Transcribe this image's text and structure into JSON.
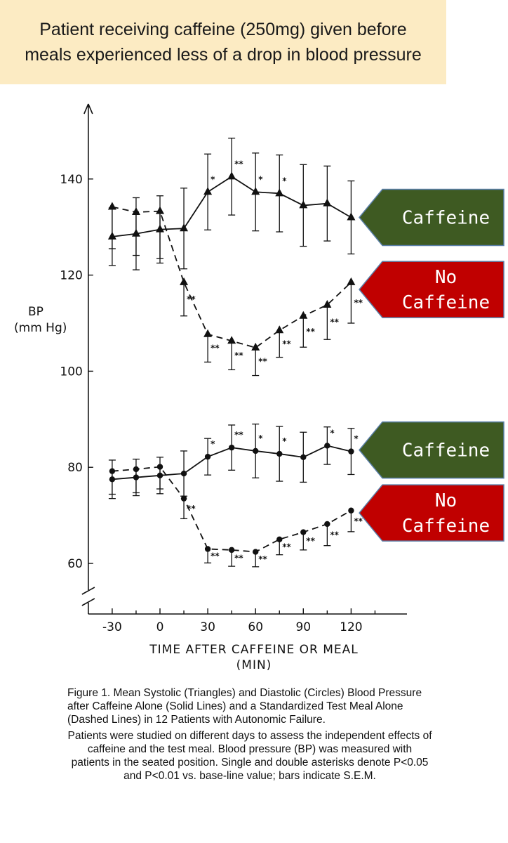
{
  "banner": {
    "line1": "Patient receiving caffeine (250mg) given before",
    "line2": "meals experienced less of a drop in blood pressure"
  },
  "chart_data": {
    "type": "line",
    "ylabel_line1": "BP",
    "ylabel_line2": "(mm Hg)",
    "xlabel_line1": "TIME AFTER CAFFEINE OR MEAL",
    "xlabel_line2": "(MIN)",
    "x_ticks": [
      -30,
      0,
      30,
      60,
      90,
      120
    ],
    "y_ticks": [
      60,
      80,
      100,
      120,
      140
    ],
    "xlim": [
      -45,
      150
    ],
    "y_axis_break": true,
    "grid": false,
    "series": [
      {
        "marker": "triangle",
        "line": "solid",
        "x": [
          -30,
          -15,
          0,
          15,
          30,
          45,
          60,
          75,
          90,
          105,
          120
        ],
        "y": [
          128,
          128.6,
          129.5,
          129.7,
          137.3,
          140.5,
          137.3,
          137,
          134.5,
          134.9,
          132
        ],
        "err": [
          6,
          7.5,
          7,
          8.4,
          7.9,
          8,
          8.1,
          8,
          8.5,
          7.8,
          7.6
        ],
        "err_dir": "both",
        "sig": [
          "",
          "",
          "",
          "",
          "*",
          "**",
          "*",
          "*",
          "",
          "",
          ""
        ]
      },
      {
        "marker": "triangle",
        "line": "dashed",
        "x": [
          -30,
          -15,
          0,
          15,
          30,
          45,
          60,
          75,
          90,
          105,
          120
        ],
        "y": [
          134.2,
          133.1,
          133.3,
          118.5,
          107.7,
          106.3,
          104.9,
          108.5,
          111.5,
          113.8,
          118.5
        ],
        "err": [
          8.7,
          9,
          9.8,
          7,
          5.8,
          6,
          5.8,
          5.6,
          6.5,
          7.2,
          8.5
        ],
        "err_dir": "down",
        "sig": [
          "",
          "",
          "",
          "**",
          "**",
          "**",
          "**",
          "**",
          "**",
          "**",
          "**"
        ]
      },
      {
        "marker": "circle",
        "line": "solid",
        "x": [
          -30,
          -15,
          0,
          15,
          30,
          45,
          60,
          75,
          90,
          105,
          120
        ],
        "y": [
          77.5,
          77.9,
          78.3,
          78.7,
          82.2,
          84.1,
          83.4,
          82.8,
          82.1,
          84.5,
          83.3
        ],
        "err": [
          4,
          3.8,
          3.8,
          4.7,
          3.8,
          4.7,
          5.6,
          5.7,
          5.2,
          3.9,
          4.8
        ],
        "err_dir": "both",
        "sig": [
          "",
          "",
          "",
          "",
          "*",
          "**",
          "*",
          "*",
          "",
          "*",
          "*"
        ]
      },
      {
        "marker": "circle",
        "line": "dashed",
        "x": [
          -30,
          -15,
          0,
          15,
          30,
          45,
          60,
          75,
          90,
          105,
          120
        ],
        "y": [
          79.2,
          79.6,
          80.1,
          73.5,
          63,
          62.8,
          62.4,
          65,
          66.5,
          68.2,
          71
        ],
        "err": [
          4.8,
          4.9,
          4.6,
          4.2,
          2.9,
          3.4,
          3.1,
          3.2,
          3.7,
          4.5,
          4.4
        ],
        "err_dir": "down",
        "sig": [
          "",
          "",
          "",
          "**",
          "**",
          "**",
          "**",
          "**",
          "**",
          "**",
          "**"
        ]
      }
    ],
    "tags": [
      {
        "lines": [
          "Caffeine"
        ],
        "color": "#3e5a22",
        "y": 132
      },
      {
        "lines": [
          "No",
          "Caffeine"
        ],
        "color": "#c00000",
        "y": 117
      },
      {
        "lines": [
          "Caffeine"
        ],
        "color": "#3e5a22",
        "y": 83.6
      },
      {
        "lines": [
          "No",
          "Caffeine"
        ],
        "color": "#c00000",
        "y": 70.5
      }
    ]
  },
  "caption": {
    "title": "Figure 1. Mean Systolic (Triangles) and Diastolic (Circles) Blood Pressure after Caffeine Alone (Solid Lines) and a Standardized Test Meal Alone (Dashed Lines) in 12 Patients with Autonomic Failure.",
    "note": "Patients were studied on different days to assess the independent effects of caffeine and the test meal. Blood pressure (BP) was measured with patients in the seated position. Single and double asterisks denote P<0.05 and P<0.01 vs. base-line value; bars indicate S.E.M."
  }
}
